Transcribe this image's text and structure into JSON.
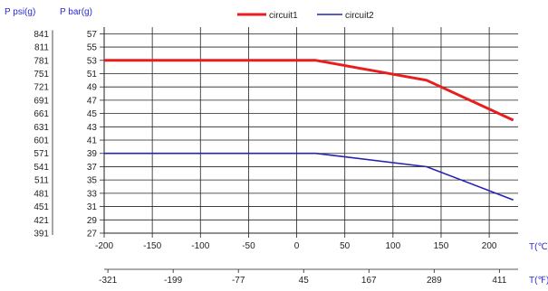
{
  "chart_data": {
    "type": "line",
    "legend": {
      "placement": "top-center"
    },
    "grid": true,
    "x": {
      "label": "T(℃)",
      "ticks": [
        -200,
        -150,
        -100,
        -50,
        0,
        50,
        100,
        150,
        200
      ],
      "range": [
        -200,
        230
      ]
    },
    "x_secondary": {
      "label": "T(℉)",
      "ticks": [
        -321,
        -199,
        -77,
        45,
        167,
        289,
        411
      ]
    },
    "y": {
      "label": "P bar(g)",
      "ticks": [
        27,
        29,
        31,
        33,
        35,
        37,
        39,
        41,
        43,
        45,
        47,
        49,
        51,
        53,
        55,
        57
      ],
      "range": [
        27,
        58
      ]
    },
    "y_secondary": {
      "label": "P psi(g)",
      "ticks": [
        391,
        421,
        451,
        481,
        511,
        541,
        571,
        601,
        631,
        661,
        691,
        721,
        751,
        781,
        811,
        841
      ]
    },
    "series": [
      {
        "name": "circuit1",
        "color": "#e81e1e",
        "points": [
          [
            -200,
            53
          ],
          [
            20,
            53
          ],
          [
            135,
            50
          ],
          [
            225,
            44
          ]
        ]
      },
      {
        "name": "circuit2",
        "color": "#2323b4",
        "points": [
          [
            -200,
            39
          ],
          [
            20,
            39
          ],
          [
            135,
            37
          ],
          [
            225,
            32
          ]
        ]
      }
    ]
  }
}
